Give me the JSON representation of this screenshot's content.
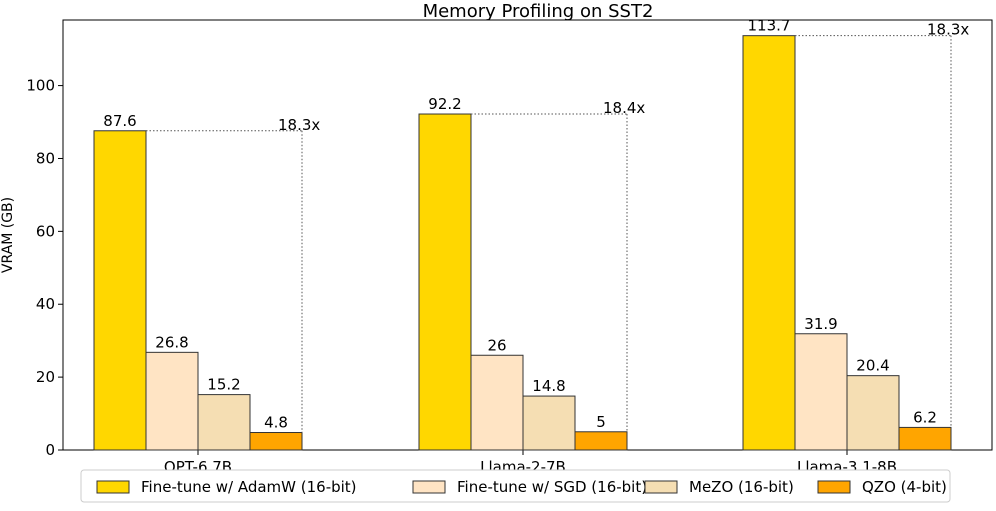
{
  "chart_data": {
    "type": "bar",
    "title": "Memory Profiling on SST2",
    "xlabel": "",
    "ylabel": "VRAM (GB)",
    "ylim": [
      0,
      118
    ],
    "yticks": [
      0,
      20,
      40,
      60,
      80,
      100
    ],
    "grid": false,
    "legend_position": "bottom",
    "categories": [
      "OPT-6.7B",
      "Llama-2-7B",
      "Llama-3.1-8B"
    ],
    "series": [
      {
        "name": "Fine-tune w/ AdamW (16-bit)",
        "color": "#FFD700",
        "values": [
          87.6,
          92.2,
          113.7
        ],
        "labels": [
          "87.6",
          "92.2",
          "113.7"
        ]
      },
      {
        "name": "Fine-tune w/ SGD (16-bit)",
        "color": "#FFE4C4",
        "values": [
          26.8,
          26,
          31.9
        ],
        "labels": [
          "26.8",
          "26",
          "31.9"
        ]
      },
      {
        "name": "MeZO (16-bit)",
        "color": "#F5DEB3",
        "values": [
          15.2,
          14.8,
          20.4
        ],
        "labels": [
          "15.2",
          "14.8",
          "20.4"
        ]
      },
      {
        "name": "QZO (4-bit)",
        "color": "#FFA500",
        "values": [
          4.8,
          5,
          6.2
        ],
        "labels": [
          "4.8",
          "5",
          "6.2"
        ]
      }
    ],
    "annotations": [
      "18.3x",
      "18.4x",
      "18.3x"
    ]
  }
}
